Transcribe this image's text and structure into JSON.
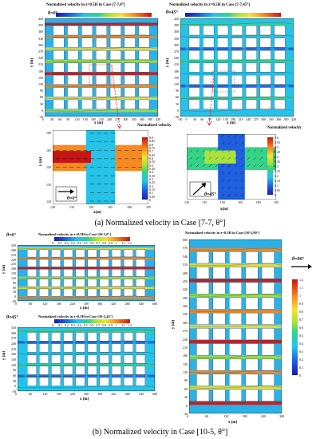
{
  "figure": {
    "panel_a": {
      "caption": "(a) Normalized velocity in Case [7-7, θ°]",
      "left_title": "Normalized velocity in z=0.5H in Case [7-7,0°]",
      "left_angle": "θ=0°",
      "right_title": "Normalized velocity in z=0.5H in Case [7-7,45°]",
      "right_angle": "θ=45°",
      "colorbar_top_ticks": [
        "0",
        "0.05",
        "0.1",
        "0.15",
        "0.2",
        "0.25",
        "0.3",
        "0.35",
        "0.4",
        "0.45",
        "0.5",
        "0.55",
        "0.6",
        "0.65",
        "0.7",
        "0.75",
        "0.8",
        "0.85",
        "0.9",
        "0.95",
        "1"
      ],
      "left_xticks": [
        "0",
        "30",
        "60",
        "90",
        "120",
        "150",
        "180",
        "210",
        "240",
        "270",
        "300",
        "330",
        "360",
        "390",
        "420"
      ],
      "left_yticks": [
        "420",
        "390",
        "360",
        "330",
        "300",
        "270",
        "240",
        "210",
        "180",
        "150",
        "120",
        "90",
        "60",
        "30",
        "0",
        "-30"
      ],
      "right_xticks": [
        "-30",
        "0",
        "30",
        "60",
        "90",
        "120",
        "150",
        "180",
        "210",
        "240",
        "270",
        "300",
        "330",
        "360",
        "390",
        "420"
      ],
      "right_yticks": [
        "420",
        "390",
        "360",
        "330",
        "300",
        "270",
        "240",
        "210",
        "180",
        "150",
        "120",
        "90",
        "60",
        "30",
        "0",
        "-30"
      ],
      "xlabel": "x (m)",
      "ylabel": "y (m)",
      "zoom_left": {
        "legend_title": "Normalized velocity",
        "legend_ticks": [
          "0.9",
          "0.85",
          "0.8",
          "0.75",
          "0.7",
          "0.65",
          "0.6",
          "0.55",
          "0.5",
          "0.45",
          "0.4",
          "0.35",
          "0.3",
          "0.25",
          "0.2",
          "0.15",
          "0.1",
          "0.05",
          "0"
        ],
        "angle": "θ=0°",
        "xticks": [
          "120",
          "135",
          "150",
          "165",
          "180",
          "195"
        ],
        "yticks": [
          "180",
          "165",
          "150",
          "135",
          "120"
        ],
        "xlabel": "x(m)",
        "ylabel": "y (m)"
      },
      "zoom_right": {
        "legend_title": "Normalized velocity",
        "legend_ticks": [
          "0.6",
          "0.55",
          "0.5",
          "0.45",
          "0.4",
          "0.35",
          "0.3",
          "0.25",
          "0.2",
          "0.15",
          "0.1",
          "0.05",
          "0"
        ],
        "angle": "θ=45°",
        "xticks": [
          "120",
          "135",
          "150",
          "165",
          "180",
          "195"
        ],
        "xlabel": "x(m)"
      }
    },
    "panel_b": {
      "caption": "(b) Normalized velocity in Case [10-5, θ°]",
      "top_title": "Normalized velocity in z=0.5H in Case [10-5,0°]",
      "top_angle": "θ=0°",
      "bottom_title": "Normalized velocity in z=0.5H in Case [10-5,45°]",
      "bottom_angle": "θ=45°",
      "right_title": "Normalized velocity in z=0.5H in Case [10-5,90°]",
      "right_angle": "θ=90°",
      "colorbar_ticks": [
        "0",
        "0.1",
        "0.2",
        "0.3",
        "0.4",
        "0.5",
        "0.6",
        "0.7",
        "0.8",
        "0.9",
        "1",
        "1.1",
        "1.2"
      ],
      "small_xticks": [
        "0",
        "60",
        "120",
        "180",
        "240",
        "300",
        "360",
        "420",
        "480",
        "540",
        "600"
      ],
      "small_yticks": [
        "330",
        "300",
        "270",
        "240",
        "210",
        "180",
        "150",
        "120",
        "90",
        "60",
        "30",
        "0",
        "-30"
      ],
      "right_yticks": [
        "600",
        "570",
        "540",
        "510",
        "480",
        "450",
        "420",
        "390",
        "360",
        "330",
        "300",
        "270",
        "240",
        "210",
        "180",
        "150",
        "120",
        "90",
        "60",
        "30",
        "0",
        "-30"
      ],
      "right_xticks": [
        "0",
        "60",
        "120",
        "180",
        "240",
        "300"
      ],
      "right_legend_ticks": [
        "1.2",
        "1.1",
        "1",
        "0.9",
        "0.8",
        "0.7",
        "0.6",
        "0.5",
        "0.4",
        "0.3",
        "0.2",
        "0.1",
        "0"
      ],
      "xlabel": "x (m)",
      "ylabel": "y (m)"
    }
  }
}
